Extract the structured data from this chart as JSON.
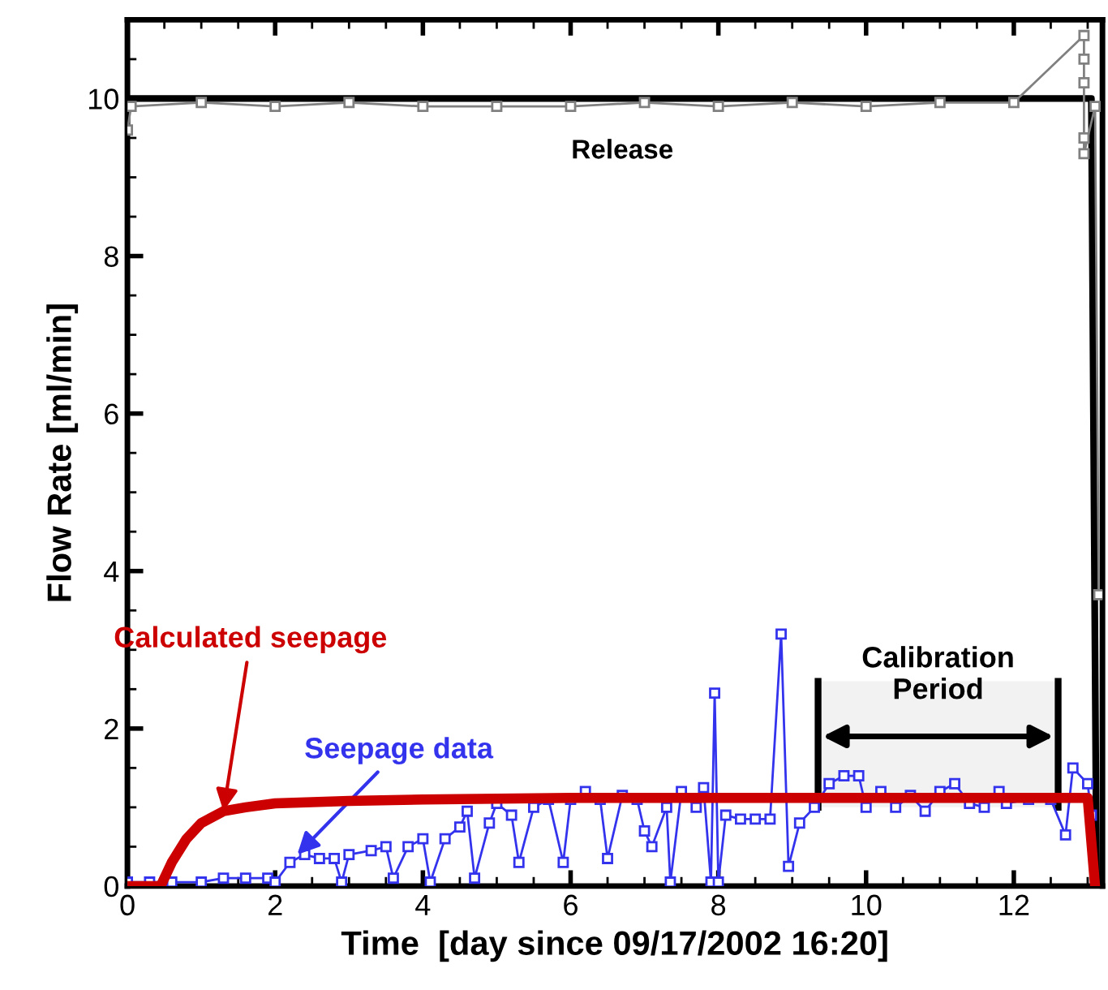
{
  "chart_data": {
    "type": "line",
    "xlabel": "Time  [day since 09/17/2002 16:20]",
    "ylabel": "Flow Rate [ml/min]",
    "xlim": [
      0,
      13.2
    ],
    "ylim": [
      0,
      11
    ],
    "xticks": [
      0,
      2,
      4,
      6,
      8,
      10,
      12
    ],
    "yticks": [
      0,
      2,
      4,
      6,
      8,
      10
    ],
    "grid": false,
    "legend": false,
    "series": [
      {
        "color": "#000000",
        "marker": "none",
        "x": [
          0,
          13.05,
          13.12
        ],
        "values": [
          10,
          10,
          0
        ]
      },
      {
        "color": "#808080",
        "marker": "square",
        "x": [
          0,
          0.05,
          1,
          2,
          3,
          4,
          5,
          6,
          7,
          8,
          9,
          10,
          11,
          12,
          12.95,
          12.95,
          12.95,
          12.95,
          12.95,
          13.1,
          13.15
        ],
        "values": [
          9.6,
          9.9,
          9.95,
          9.9,
          9.95,
          9.9,
          9.9,
          9.9,
          9.95,
          9.9,
          9.95,
          9.9,
          9.95,
          9.95,
          10.8,
          10.5,
          10.2,
          9.5,
          9.3,
          9.9,
          3.7
        ]
      },
      {
        "color": "#3333ee",
        "marker": "square",
        "x": [
          0,
          0.3,
          0.6,
          1.0,
          1.3,
          1.6,
          1.9,
          2.0,
          2.2,
          2.4,
          2.6,
          2.8,
          2.9,
          3.0,
          3.3,
          3.5,
          3.6,
          3.8,
          4.0,
          4.1,
          4.3,
          4.5,
          4.6,
          4.7,
          4.9,
          5.0,
          5.2,
          5.3,
          5.5,
          5.7,
          5.9,
          6.0,
          6.2,
          6.4,
          6.5,
          6.7,
          6.9,
          7.0,
          7.1,
          7.3,
          7.35,
          7.5,
          7.7,
          7.8,
          7.9,
          7.95,
          8.0,
          8.1,
          8.3,
          8.5,
          8.7,
          8.85,
          8.95,
          9.1,
          9.3,
          9.5,
          9.7,
          9.9,
          10.0,
          10.2,
          10.4,
          10.6,
          10.8,
          11.0,
          11.2,
          11.4,
          11.6,
          11.8,
          11.9,
          12.2,
          12.5,
          12.7,
          12.8,
          13.0,
          13.05
        ],
        "values": [
          0.05,
          0.05,
          0.05,
          0.05,
          0.1,
          0.1,
          0.1,
          0.05,
          0.3,
          0.4,
          0.35,
          0.35,
          0.05,
          0.4,
          0.45,
          0.5,
          0.1,
          0.5,
          0.6,
          0.05,
          0.6,
          0.75,
          0.95,
          0.1,
          0.8,
          1.05,
          0.9,
          0.3,
          1.0,
          1.1,
          0.3,
          1.1,
          1.2,
          1.1,
          0.35,
          1.15,
          1.1,
          0.7,
          0.5,
          1.0,
          0.05,
          1.2,
          1.0,
          1.25,
          0.05,
          2.45,
          0.05,
          0.9,
          0.85,
          0.85,
          0.85,
          3.2,
          0.25,
          0.8,
          1.0,
          1.3,
          1.4,
          1.4,
          1.0,
          1.2,
          1.0,
          1.15,
          0.95,
          1.2,
          1.3,
          1.05,
          1.0,
          1.2,
          1.05,
          1.1,
          1.1,
          0.65,
          1.5,
          1.3,
          0.9
        ]
      },
      {
        "color": "#cc0000",
        "marker": "none",
        "x": [
          0,
          0.45,
          0.6,
          0.8,
          1.0,
          1.3,
          1.6,
          2.0,
          3.0,
          4.0,
          6.0,
          9.0,
          13.0,
          13.1
        ],
        "values": [
          0,
          0,
          0.3,
          0.6,
          0.8,
          0.95,
          1.0,
          1.05,
          1.08,
          1.1,
          1.12,
          1.12,
          1.12,
          0
        ]
      }
    ],
    "annotations": [
      {
        "text": "Release",
        "x": 6.7,
        "y": 9.9
      },
      {
        "text": "Calculated seepage",
        "x": 1.3,
        "y": 0.95
      },
      {
        "text": "Seepage data",
        "x": 2.3,
        "y": 0.4
      }
    ],
    "bands": [
      {
        "axis": "x",
        "from": 9.35,
        "to": 12.6,
        "label": "Calibration\nPeriod",
        "color": "#f2f2f2"
      }
    ]
  }
}
